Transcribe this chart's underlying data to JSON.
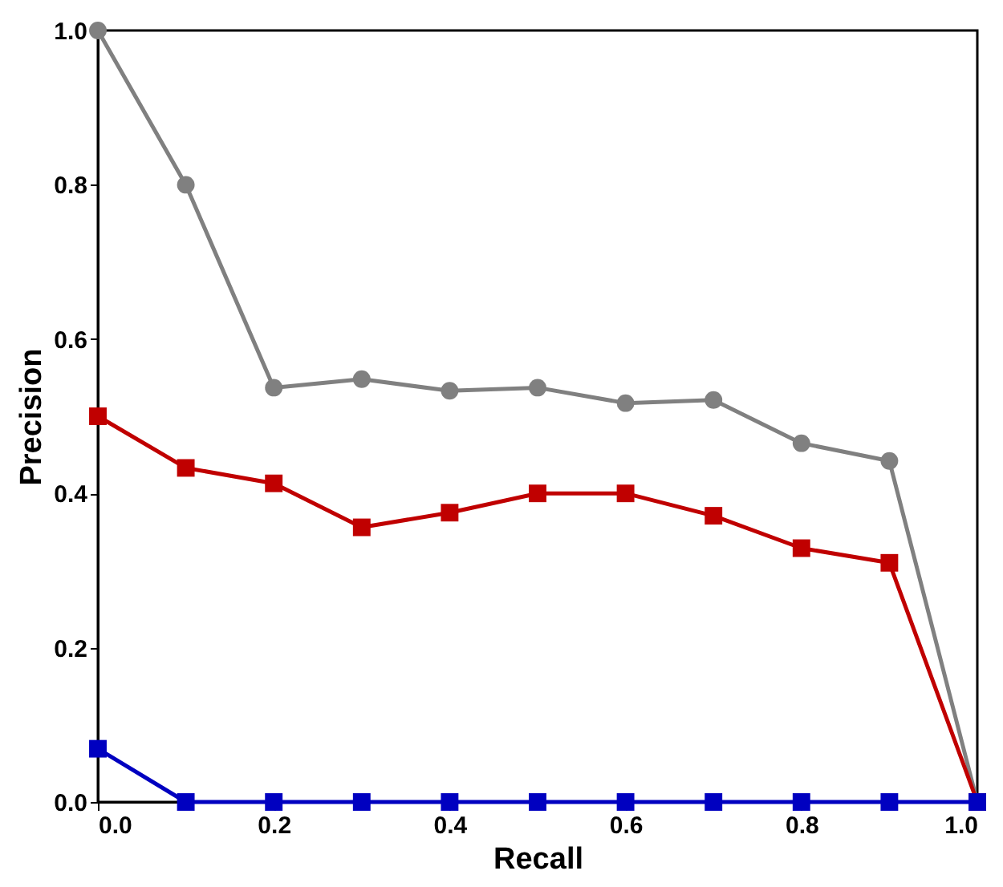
{
  "chart_data": {
    "type": "line",
    "xlabel": "Recall",
    "ylabel": "Precision",
    "x": [
      0.0,
      0.1,
      0.2,
      0.3,
      0.4,
      0.5,
      0.6,
      0.7,
      0.8,
      0.9,
      1.0
    ],
    "xlim": [
      0.0,
      1.0
    ],
    "ylim": [
      0.0,
      1.0
    ],
    "xticks": [
      {
        "value": 0,
        "label": "0.0"
      },
      {
        "value": 0.2,
        "label": "0.2"
      },
      {
        "value": 0.4,
        "label": "0.4"
      },
      {
        "value": 0.6,
        "label": "0.6"
      },
      {
        "value": 0.8,
        "label": "0.8"
      },
      {
        "value": 1,
        "label": "1.0"
      }
    ],
    "yticks": [
      {
        "value": 0,
        "label": "0.0"
      },
      {
        "value": 0.2,
        "label": "0.2"
      },
      {
        "value": 0.4,
        "label": "0.4"
      },
      {
        "value": 0.6,
        "label": "0.6"
      },
      {
        "value": 0.8,
        "label": "0.8"
      },
      {
        "value": 1,
        "label": "1.0"
      }
    ],
    "grid": false,
    "line_style": "solid",
    "series": [
      {
        "color": "#808080",
        "marker": "circle",
        "values": [
          1.0,
          0.8,
          0.537,
          0.548,
          0.533,
          0.537,
          0.517,
          0.521,
          0.465,
          0.442,
          0.0
        ]
      },
      {
        "color": "#c00000",
        "marker": "square",
        "values": [
          0.5,
          0.433,
          0.413,
          0.356,
          0.375,
          0.4,
          0.4,
          0.371,
          0.329,
          0.31,
          0.0
        ]
      },
      {
        "color": "#0000c0",
        "marker": "square",
        "values": [
          0.069,
          0.0,
          0.0,
          0.0,
          0.0,
          0.0,
          0.0,
          0.0,
          0.0,
          0.0,
          0.0
        ]
      }
    ]
  }
}
